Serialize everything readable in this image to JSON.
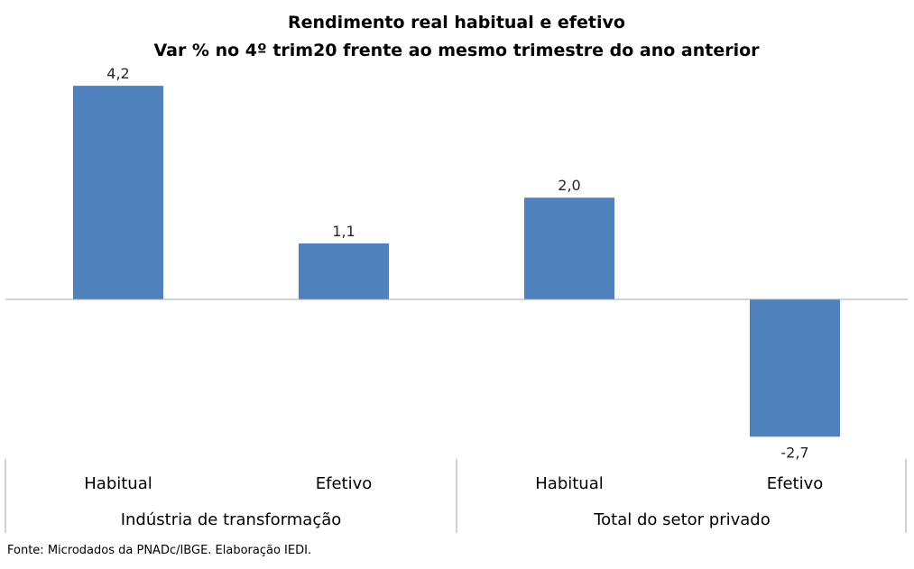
{
  "chart_data": {
    "type": "bar",
    "title": "Rendimento real habitual e efetivo",
    "subtitle": "Var % no 4º trim20 frente ao mesmo trimestre do ano anterior",
    "categories": [
      "Habitual",
      "Efetivo",
      "Habitual",
      "Efetivo"
    ],
    "groups": [
      {
        "name": "Indústria de transformação",
        "categories": [
          "Habitual",
          "Efetivo"
        ]
      },
      {
        "name": "Total do setor privado",
        "categories": [
          "Habitual",
          "Efetivo"
        ]
      }
    ],
    "values": [
      4.2,
      1.1,
      2.0,
      -2.7
    ],
    "value_labels": [
      "4,2",
      "1,1",
      "2,0",
      "-2,7"
    ],
    "bar_color": "#4F81BD",
    "ylim": [
      -2.7,
      4.2
    ],
    "grid": false,
    "legend": "none"
  },
  "source": "Fonte: Microdados da PNADc/IBGE. Elaboração IEDI."
}
